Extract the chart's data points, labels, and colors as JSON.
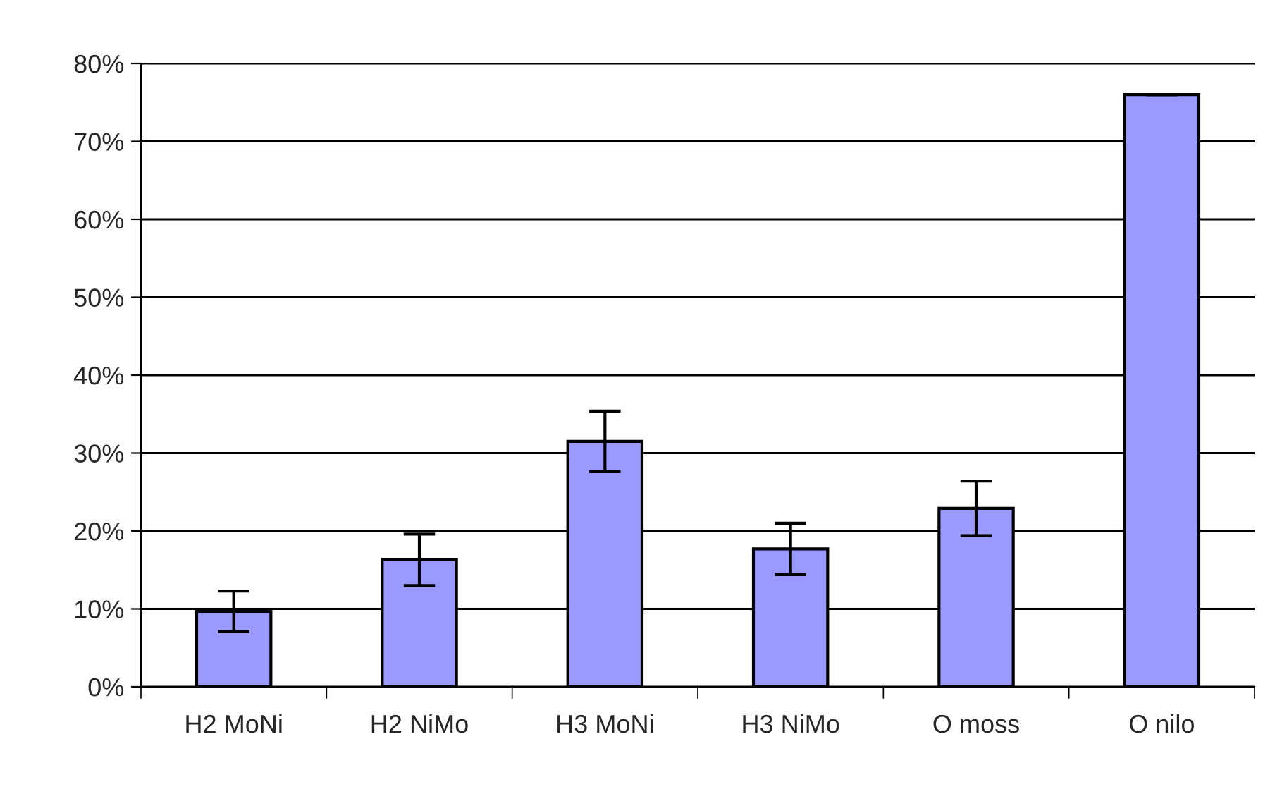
{
  "chart_data": {
    "type": "bar",
    "categories": [
      "H2 MoNi",
      "H2 NiMo",
      "H3 MoNi",
      "H3 NiMo",
      "O moss",
      "O nilo"
    ],
    "values": [
      9.7,
      16.3,
      31.5,
      17.7,
      22.9,
      76.0
    ],
    "errors": [
      2.6,
      3.3,
      3.9,
      3.3,
      3.5,
      0
    ],
    "color": "#9999ff",
    "ylim": [
      0,
      80
    ],
    "yticks": [
      {
        "value": 0,
        "label": "0%"
      },
      {
        "value": 10,
        "label": "10%"
      },
      {
        "value": 20,
        "label": "20%"
      },
      {
        "value": 30,
        "label": "30%"
      },
      {
        "value": 40,
        "label": "40%"
      },
      {
        "value": 50,
        "label": "50%"
      },
      {
        "value": 60,
        "label": "60%"
      },
      {
        "value": 70,
        "label": "70%"
      },
      {
        "value": 80,
        "label": "80%"
      }
    ],
    "grid": "y"
  }
}
